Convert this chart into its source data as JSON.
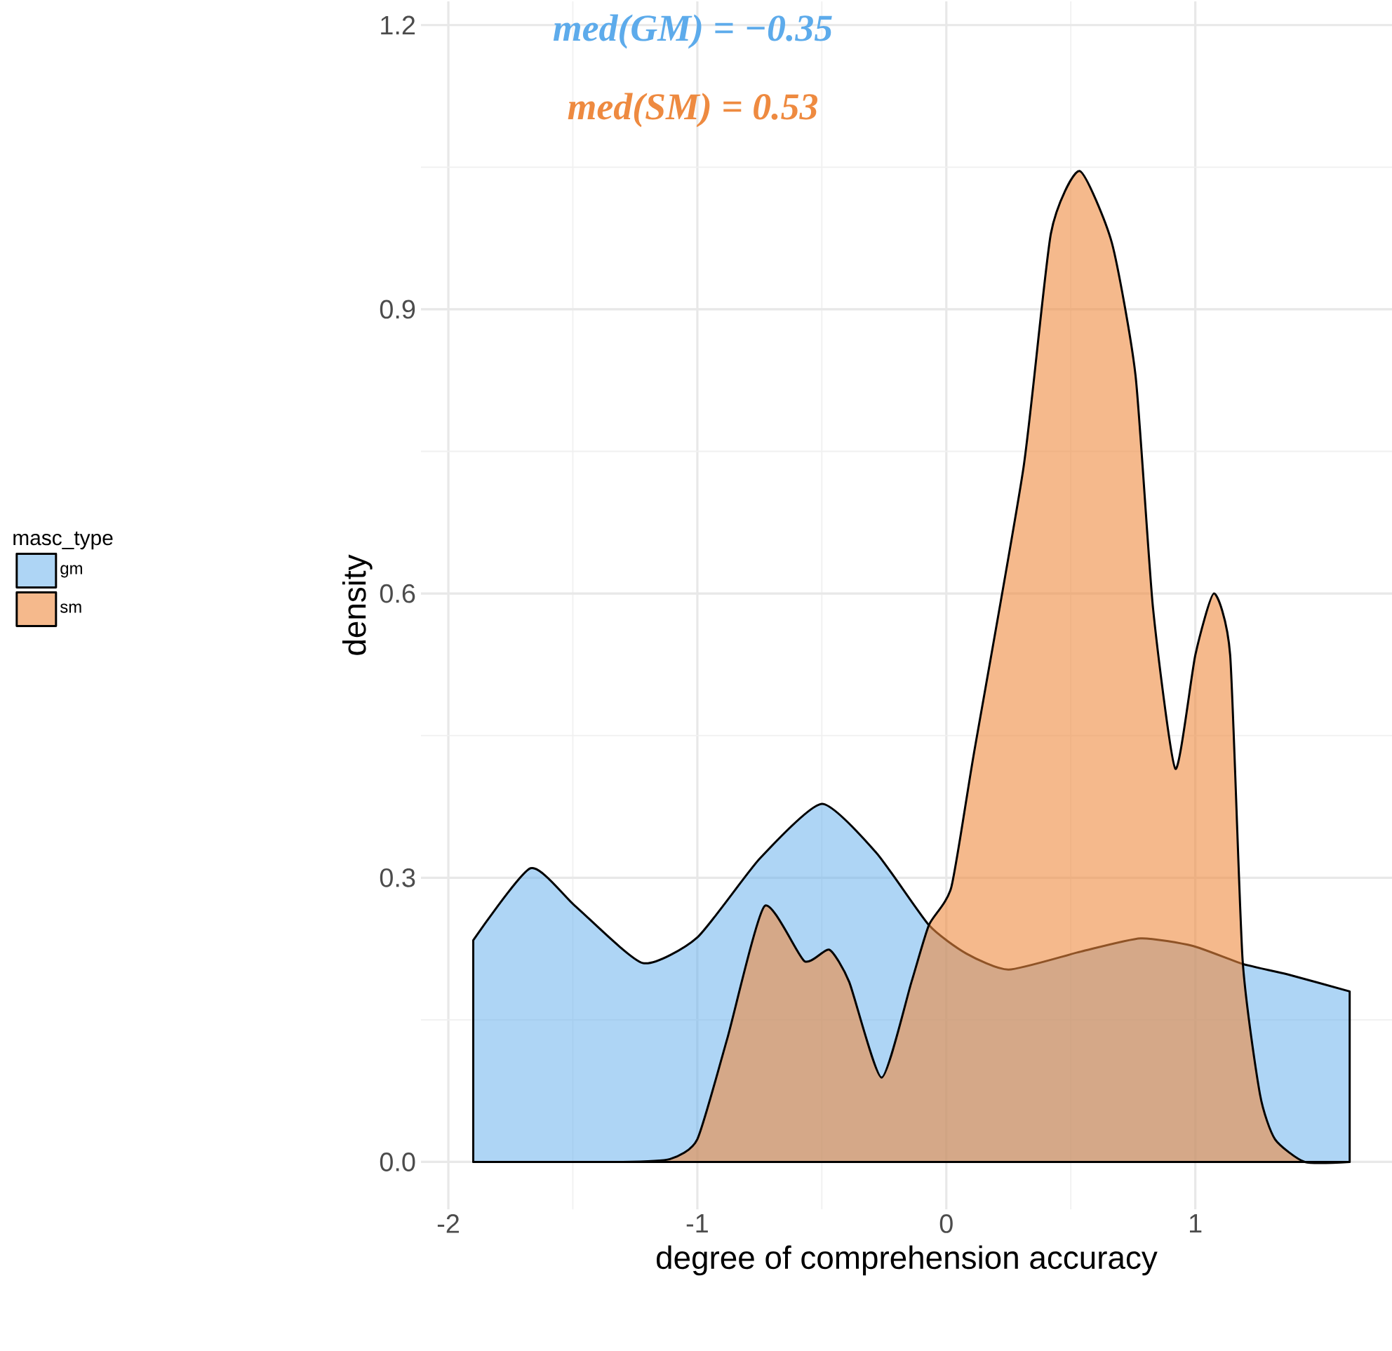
{
  "chart_data": {
    "type": "area",
    "xlabel": "degree of comprehension accuracy",
    "ylabel": "density",
    "legend_title": "masc_type",
    "legend": "left",
    "grid": true,
    "annotations": [
      "med(GM) = −0.35",
      "med(SM) =   0.53"
    ],
    "xlim": [
      -2.11,
      1.79
    ],
    "ylim": [
      -0.05,
      1.225
    ],
    "xticks": [
      -2,
      -1,
      0,
      1
    ],
    "yticks": [
      {
        "value": 0,
        "label": "0.0"
      },
      {
        "value": 0.3,
        "label": "0.3"
      },
      {
        "value": 0.6,
        "label": "0.6"
      },
      {
        "value": 0.9,
        "label": "0.9"
      },
      {
        "value": 1.2,
        "label": "1.2"
      }
    ],
    "series": [
      {
        "name": "gm",
        "color": "#5dabeb",
        "x": [
          -1.9,
          -1.67,
          -1.49,
          -1.22,
          -1.0,
          -0.75,
          -0.5,
          -0.28,
          -0.07,
          0.08,
          0.25,
          0.54,
          0.78,
          0.99,
          1.19,
          1.37,
          1.62
        ],
        "values": [
          0.234,
          0.31,
          0.27,
          0.21,
          0.237,
          0.32,
          0.378,
          0.326,
          0.25,
          0.22,
          0.203,
          0.222,
          0.236,
          0.228,
          0.209,
          0.198,
          0.18
        ]
      },
      {
        "name": "sm",
        "color": "#ee8a40",
        "x": [
          -1.9,
          -1.3,
          -1.11,
          -1.0,
          -0.88,
          -0.73,
          -0.57,
          -0.47,
          -0.39,
          -0.26,
          -0.14,
          -0.07,
          0.02,
          0.11,
          0.31,
          0.42,
          0.535,
          0.665,
          0.76,
          0.83,
          0.92,
          1.0,
          1.075,
          1.14,
          1.19,
          1.26,
          1.32,
          1.44,
          1.62
        ],
        "values": [
          0,
          0,
          0.003,
          0.024,
          0.13,
          0.27,
          0.212,
          0.224,
          0.19,
          0.089,
          0.19,
          0.25,
          0.29,
          0.43,
          0.733,
          0.98,
          1.046,
          0.97,
          0.83,
          0.585,
          0.415,
          0.535,
          0.6,
          0.535,
          0.213,
          0.071,
          0.024,
          0,
          0
        ]
      }
    ]
  }
}
